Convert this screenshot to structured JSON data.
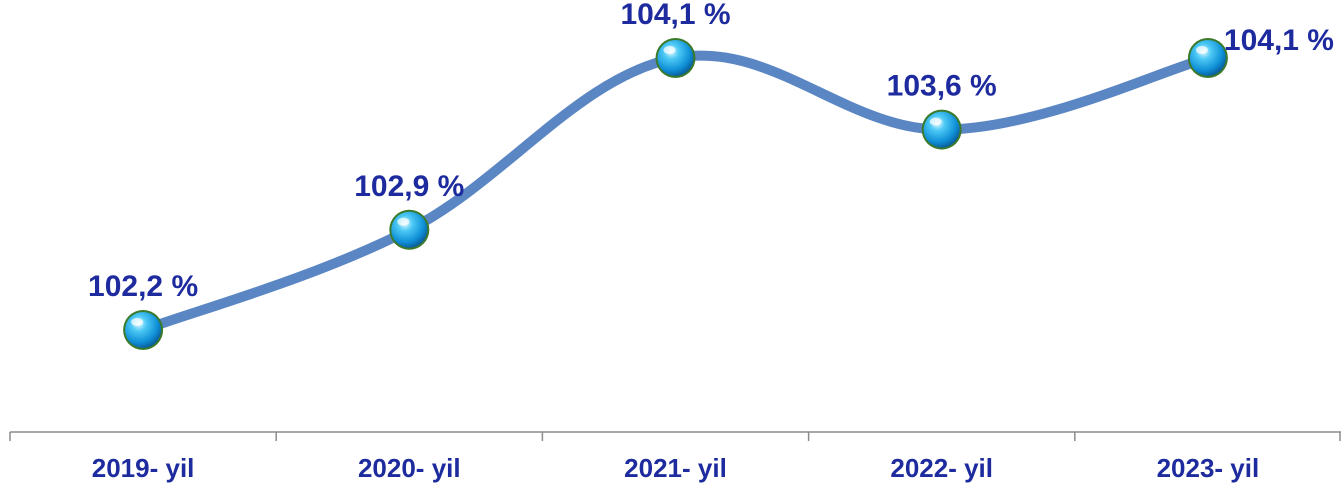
{
  "chart_data": {
    "type": "line",
    "categories": [
      "2019- yil",
      "2020- yil",
      "2021- yil",
      "2022- yil",
      "2023- yil"
    ],
    "values": [
      102.2,
      102.9,
      104.1,
      103.6,
      104.1
    ],
    "data_labels": [
      "102,2 %",
      "102,9 %",
      "104,1 %",
      "103,6 %",
      "104,1 %"
    ],
    "title": "",
    "xlabel": "",
    "ylabel": "",
    "ylim": [
      101.5,
      104.4
    ],
    "grid": false,
    "legend": "none",
    "line_style": "smooth",
    "colors": {
      "line": "#5b86c4",
      "marker": "#19a7e6",
      "label": "#1d2b9e",
      "axis": "#8c8c8c",
      "drop_line": "#9bb7dc"
    }
  }
}
